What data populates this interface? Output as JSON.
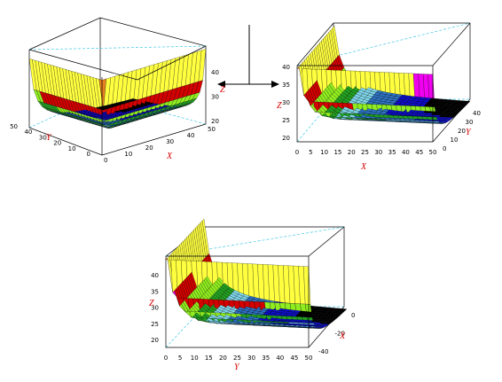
{
  "chart_data": [
    {
      "type": "surface",
      "view": "top-left",
      "xlabel": "X",
      "ylabel": "Y",
      "zlabel": "Z",
      "x_ticks": [
        "0",
        "10",
        "20",
        "30",
        "40",
        "50"
      ],
      "y_ticks": [
        "0",
        "10",
        "20",
        "30",
        "40",
        "50"
      ],
      "z_ticks": [
        "20",
        "30",
        "40"
      ],
      "xlim": [
        0,
        50
      ],
      "ylim": [
        0,
        50
      ],
      "zlim": [
        17,
        43
      ],
      "grid": false,
      "band_colors": [
        "#000000",
        "#0d0dd0",
        "#2d73c8",
        "#7fd7ee",
        "#22a022",
        "#90ee20",
        "#d40000",
        "#f000f0",
        "#ffff40",
        "#e88020"
      ]
    },
    {
      "type": "surface",
      "view": "top-right",
      "xlabel": "X",
      "ylabel": "Y",
      "zlabel": "Z",
      "x_ticks": [
        "0",
        "5",
        "10",
        "15",
        "20",
        "25",
        "30",
        "35",
        "40",
        "45",
        "50"
      ],
      "y_ticks": [
        "0",
        "10",
        "20",
        "30",
        "40"
      ],
      "z_ticks": [
        "20",
        "25",
        "30",
        "35",
        "40"
      ],
      "xlim": [
        0,
        50
      ],
      "ylim": [
        0,
        50
      ],
      "zlim": [
        17,
        43
      ],
      "grid": false,
      "band_colors": [
        "#000000",
        "#0d0dd0",
        "#2d73c8",
        "#7fd7ee",
        "#22a022",
        "#90ee20",
        "#d40000",
        "#f000f0",
        "#ffff40",
        "#e88020"
      ]
    },
    {
      "type": "surface",
      "view": "bottom",
      "xlabel": "X",
      "ylabel": "Y",
      "zlabel": "Z",
      "x_ticks": [
        "0",
        "-20",
        "-40"
      ],
      "y_ticks": [
        "0",
        "5",
        "10",
        "15",
        "20",
        "25",
        "30",
        "35",
        "40",
        "45",
        "50"
      ],
      "z_ticks": [
        "20",
        "25",
        "30",
        "35",
        "40"
      ],
      "xlim": [
        -50,
        0
      ],
      "ylim": [
        0,
        50
      ],
      "zlim": [
        17,
        43
      ],
      "grid": false,
      "band_colors": [
        "#000000",
        "#0d0dd0",
        "#2d73c8",
        "#7fd7ee",
        "#22a022",
        "#90ee20",
        "#d40000",
        "#f000f0",
        "#ffff40",
        "#e88020"
      ]
    }
  ]
}
